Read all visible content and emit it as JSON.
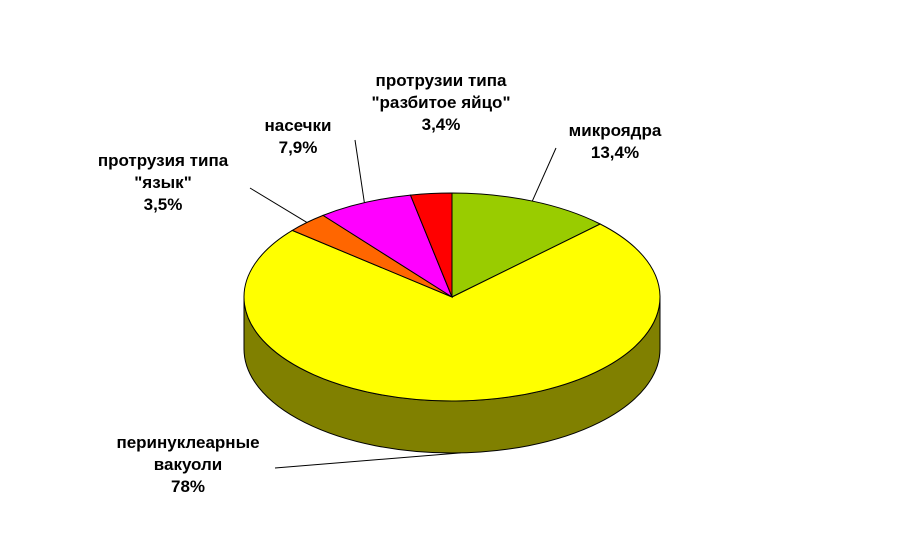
{
  "chart_data": {
    "type": "pie3d",
    "categories": [
      "микроядра",
      "перинуклеарные вакуоли",
      "протрузия типа \"язык\"",
      "насечки",
      "протрузии типа \"разбитое яйцо\""
    ],
    "values": [
      13.4,
      78,
      3.5,
      7.9,
      3.4
    ],
    "value_labels": [
      "13,4%",
      "78%",
      "3,5%",
      "7,9%",
      "3,4%"
    ],
    "colors": [
      "#99cc00",
      "#ffff00",
      "#ff6600",
      "#ff00ff",
      "#ff0000"
    ],
    "side_colors": [
      "#4d6600",
      "#808000",
      "#803300",
      "#800080",
      "#800000"
    ]
  }
}
